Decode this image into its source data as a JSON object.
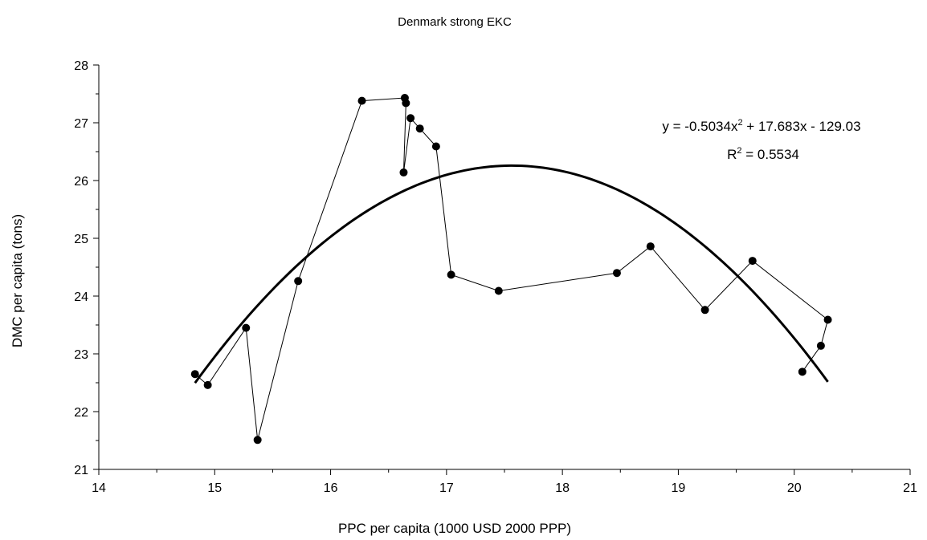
{
  "chart_data": {
    "type": "scatter",
    "title": "Denmark strong EKC",
    "xlabel": "PPC per capita (1000 USD 2000 PPP)",
    "ylabel": "DMC per capita (tons)",
    "xlim": [
      14,
      21
    ],
    "ylim": [
      21,
      28
    ],
    "xticks": [
      "14",
      "15",
      "16",
      "17",
      "18",
      "19",
      "20",
      "21"
    ],
    "yticks": [
      "21",
      "22",
      "23",
      "24",
      "25",
      "26",
      "27",
      "28"
    ],
    "grid": false,
    "series": [
      {
        "style": "markers connected by thin line",
        "points": [
          [
            14.83,
            22.65
          ],
          [
            14.94,
            22.46
          ],
          [
            15.27,
            23.45
          ],
          [
            15.37,
            21.51
          ],
          [
            15.72,
            24.26
          ],
          [
            16.27,
            27.38
          ],
          [
            16.64,
            27.43
          ],
          [
            16.65,
            27.34
          ],
          [
            16.63,
            26.14
          ],
          [
            16.69,
            27.08
          ],
          [
            16.77,
            26.9
          ],
          [
            16.91,
            26.59
          ],
          [
            17.04,
            24.37
          ],
          [
            17.45,
            24.09
          ],
          [
            18.47,
            24.4
          ],
          [
            18.76,
            24.86
          ],
          [
            19.23,
            23.76
          ],
          [
            19.64,
            24.61
          ],
          [
            20.29,
            23.59
          ],
          [
            20.23,
            23.14
          ],
          [
            20.07,
            22.69
          ]
        ]
      }
    ],
    "trendline": {
      "type": "polynomial",
      "coefficients": {
        "a": -0.5034,
        "b": 17.683,
        "c": -129.03
      },
      "x_range": [
        14.83,
        20.29
      ],
      "equation_prefix": "y = -0.5034x",
      "equation_sup": "2",
      "equation_suffix": " + 17.683x - 129.03",
      "r2_prefix": "R",
      "r2_sup": "2",
      "r2_suffix": " = 0.5534"
    },
    "colors": {
      "series": "#000000",
      "trendline": "#000000",
      "axis": "#000000"
    }
  }
}
